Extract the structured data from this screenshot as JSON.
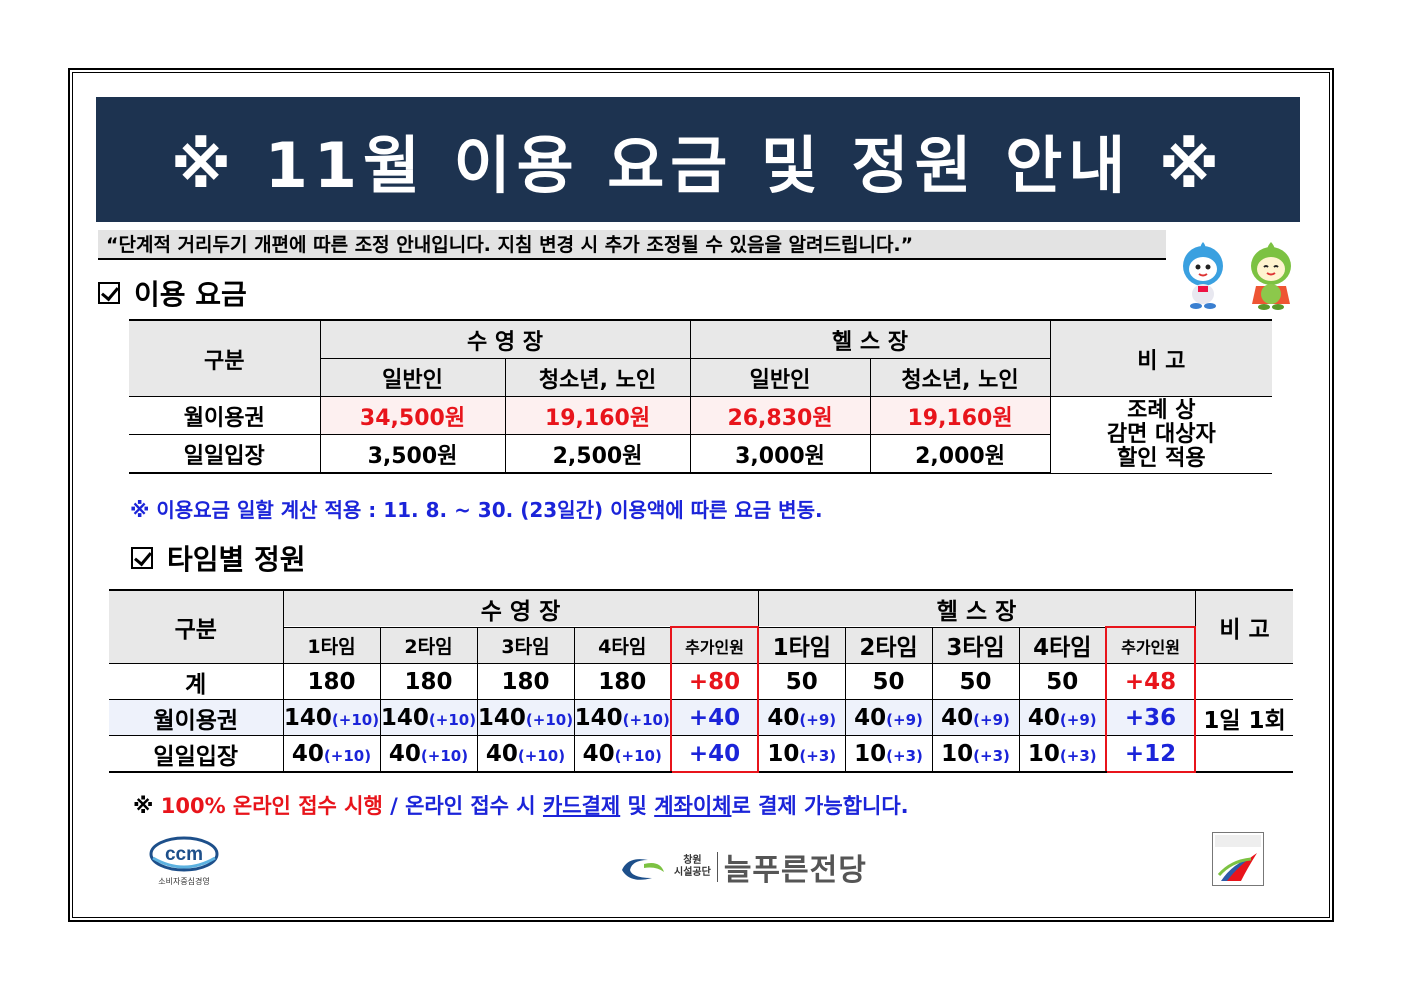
{
  "banner": {
    "title": "※ 11월 이용 요금 및 정원 안내 ※"
  },
  "notice": "“단계적 거리두기 개편에 따른 조정 안내입니다. 지침 변경 시 추가 조정될 수 있음을 알려드립니다.”",
  "section1": {
    "title": "이용 요금"
  },
  "fees": {
    "col_category": "구분",
    "pool": "수 영 장",
    "gym": "헬 스 장",
    "remark": "비  고",
    "general": "일반인",
    "youth_senior": "청소년, 노인",
    "rows": [
      {
        "label": "월이용권",
        "pool_general": "34,500원",
        "pool_youth": "19,160원",
        "gym_general": "26,830원",
        "gym_youth": "19,160원"
      },
      {
        "label": "일일입장",
        "pool_general": "3,500원",
        "pool_youth": "2,500원",
        "gym_general": "3,000원",
        "gym_youth": "2,000원"
      }
    ],
    "remark_lines": [
      "조례 상",
      "감면 대상자",
      "할인 적용"
    ]
  },
  "fee_note": "※ 이용요금 일할 계산 적용 : 11. 8. ~ 30. (23일간) 이용액에 따른 요금 변동.",
  "section2": {
    "title": "타임별 정원"
  },
  "capacity": {
    "col_category": "구분",
    "pool": "수 영 장",
    "gym": "헬 스 장",
    "remark": "비 고",
    "slots": [
      "1타임",
      "2타임",
      "3타임",
      "4타임",
      "추가인원"
    ],
    "rows": [
      {
        "label": "계",
        "pool": [
          [
            "180",
            ""
          ],
          [
            "180",
            ""
          ],
          [
            "180",
            ""
          ],
          [
            "180",
            ""
          ]
        ],
        "pool_extra": "+80",
        "gym": [
          [
            "50",
            ""
          ],
          [
            "50",
            ""
          ],
          [
            "50",
            ""
          ],
          [
            "50",
            ""
          ]
        ],
        "gym_extra": "+48",
        "remark": ""
      },
      {
        "label": "월이용권",
        "pool": [
          [
            "140",
            "(+10)"
          ],
          [
            "140",
            "(+10)"
          ],
          [
            "140",
            "(+10)"
          ],
          [
            "140",
            "(+10)"
          ]
        ],
        "pool_extra": "+40",
        "gym": [
          [
            "40",
            "(+9)"
          ],
          [
            "40",
            "(+9)"
          ],
          [
            "40",
            "(+9)"
          ],
          [
            "40",
            "(+9)"
          ]
        ],
        "gym_extra": "+36",
        "remark": "1일 1회"
      },
      {
        "label": "일일입장",
        "pool": [
          [
            "40",
            "(+10)"
          ],
          [
            "40",
            "(+10)"
          ],
          [
            "40",
            "(+10)"
          ],
          [
            "40",
            "(+10)"
          ]
        ],
        "pool_extra": "+40",
        "gym": [
          [
            "10",
            "(+3)"
          ],
          [
            "10",
            "(+3)"
          ],
          [
            "10",
            "(+3)"
          ],
          [
            "10",
            "(+3)"
          ]
        ],
        "gym_extra": "+12",
        "remark": ""
      }
    ]
  },
  "bottom_note": {
    "prefix": "※ ",
    "red": "100% 온라인 접수 시행",
    "mid": " / 온라인 접수 시 ",
    "card": "카드결제",
    "and": " 및 ",
    "transfer": "계좌이체",
    "suffix": "로 결제 가능합니다."
  },
  "logos": {
    "ccm": "ccm",
    "ccm_caption": "소비자중심경영",
    "org_line1": "창원",
    "org_line2": "시설공단",
    "venue": "늘푸른전당"
  },
  "colors": {
    "banner": "#1d3350",
    "red": "#e8141b",
    "blue": "#1b24d9"
  }
}
